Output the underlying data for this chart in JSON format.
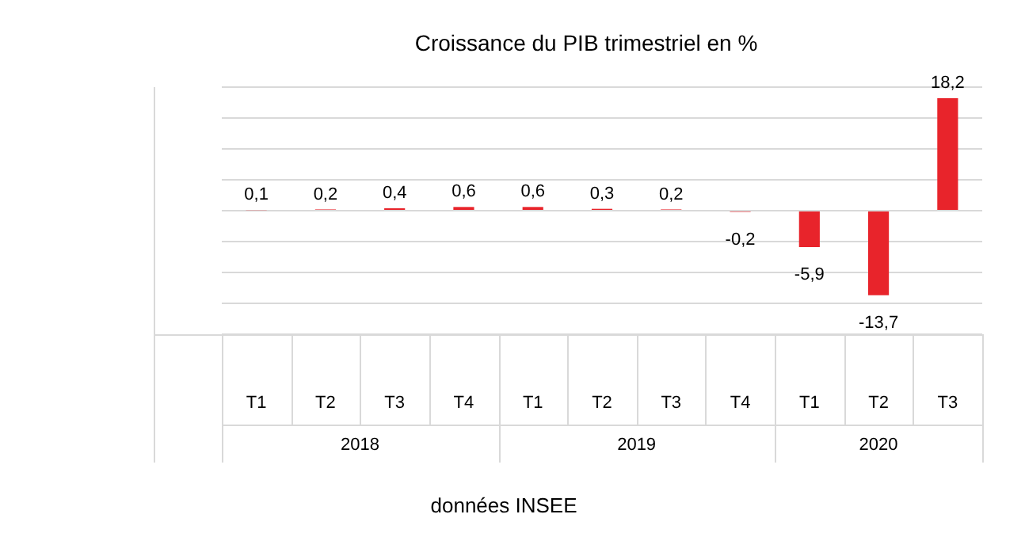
{
  "chart_data": {
    "type": "bar",
    "title": "Croissance du PIB trimestriel en %",
    "categories": [
      "T1",
      "T2",
      "T3",
      "T4",
      "T1",
      "T2",
      "T3",
      "T4",
      "T1",
      "T2",
      "T3"
    ],
    "values": [
      0.1,
      0.2,
      0.4,
      0.6,
      0.6,
      0.3,
      0.2,
      -0.2,
      -5.9,
      -13.7,
      18.2
    ],
    "value_labels": [
      "0,1",
      "0,2",
      "0,4",
      "0,6",
      "0,6",
      "0,3",
      "0,2",
      "-0,2",
      "-5,9",
      "-13,7",
      "18,2"
    ],
    "color": "#e8242b",
    "ylim": [
      -20,
      20
    ],
    "yticks": [
      {
        "value": -20,
        "label": null
      },
      {
        "value": -15,
        "label": null
      },
      {
        "value": -10,
        "label": null
      },
      {
        "value": -5,
        "label": null
      },
      {
        "value": 0,
        "label": null
      },
      {
        "value": 5,
        "label": null
      },
      {
        "value": 10,
        "label": null
      },
      {
        "value": 15,
        "label": null
      },
      {
        "value": 20,
        "label": null
      }
    ],
    "tick_labels": "x",
    "grid": "y",
    "legend": false,
    "annotations": [
      "2018",
      "2019",
      "2020",
      "données INSEE"
    ]
  }
}
